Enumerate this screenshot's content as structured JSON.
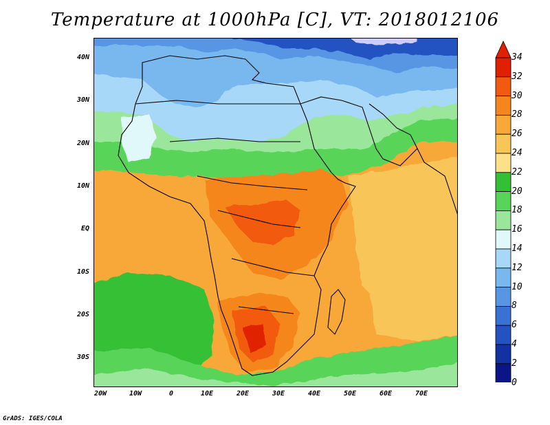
{
  "title": "Temperature at 1000hPa [C], VT: 2018012106",
  "footer": "GrADS: IGES/COLA",
  "lat_labels": [
    "40N",
    "30N",
    "20N",
    "10N",
    "EQ",
    "10S",
    "20S",
    "30S"
  ],
  "lon_labels": [
    "20W",
    "10W",
    "0",
    "10E",
    "20E",
    "30E",
    "40E",
    "50E",
    "60E",
    "70E"
  ],
  "colorbar": {
    "levels": [
      "34",
      "32",
      "30",
      "28",
      "26",
      "24",
      "22",
      "20",
      "18",
      "16",
      "14",
      "12",
      "10",
      "8",
      "6",
      "4",
      "2",
      "0"
    ],
    "colors": {
      "above_32": "#e02000",
      "30_32": "#f25a10",
      "28_30": "#f5861e",
      "26_28": "#f7a838",
      "24_26": "#f8c658",
      "22_24": "#fde08a",
      "20_22": "#34c034",
      "18_20": "#58d458",
      "16_18": "#9ae69a",
      "14_16": "#e1f8fa",
      "12_14": "#a8d8f7",
      "10_12": "#78b8ee",
      "8_10": "#5896e4",
      "6_8": "#3a72d4",
      "4_6": "#2452c0",
      "2_4": "#1232a4",
      "0_2": "#0a1686",
      "below_0": "#cfcdfb"
    }
  }
}
